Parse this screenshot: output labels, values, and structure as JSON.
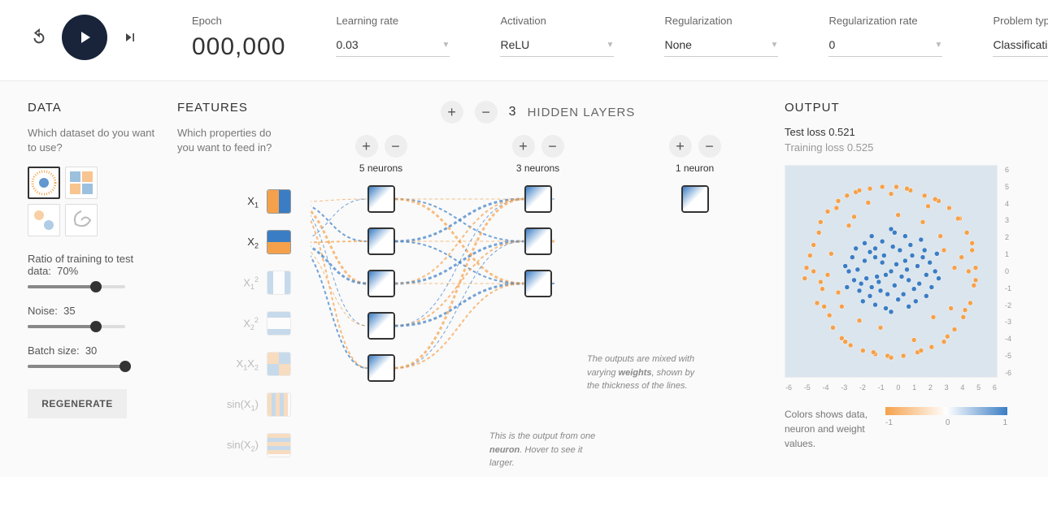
{
  "colors": {
    "orange": "#f5a14b",
    "blue": "#3b7dc4",
    "light_blue": "#9cc1df",
    "pale_orange": "#f8c48f",
    "dark": "#19243a",
    "grey": "#888888",
    "output_bg": "#dbe5ed"
  },
  "controls": {
    "epoch_label": "Epoch",
    "epoch_value": "000,000",
    "learning_rate_label": "Learning rate",
    "learning_rate_value": "0.03",
    "activation_label": "Activation",
    "activation_value": "ReLU",
    "regularization_label": "Regularization",
    "regularization_value": "None",
    "regularization_rate_label": "Regularization rate",
    "regularization_rate_value": "0",
    "problem_type_label": "Problem type",
    "problem_type_value": "Classification"
  },
  "data_panel": {
    "title": "DATA",
    "help": "Which dataset do you want to use?",
    "datasets": [
      "circle",
      "exclusive-or",
      "gaussian",
      "spiral"
    ],
    "selected_dataset": "circle",
    "ratio_label": "Ratio of training to test data:",
    "ratio_value": "70%",
    "ratio_pct": 70,
    "noise_label": "Noise:",
    "noise_value": "35",
    "noise_pct": 70,
    "batch_label": "Batch size:",
    "batch_value": "30",
    "batch_pct": 100,
    "regenerate_label": "REGENERATE"
  },
  "features_panel": {
    "title": "FEATURES",
    "help": "Which properties do you want to feed in?",
    "items": [
      {
        "label": "X<sub>1</sub>",
        "active": true,
        "type": "x1"
      },
      {
        "label": "X<sub>2</sub>",
        "active": true,
        "type": "x2"
      },
      {
        "label": "X<sub>1</sub><sup>2</sup>",
        "active": false,
        "type": "x1sq"
      },
      {
        "label": "X<sub>2</sub><sup>2</sup>",
        "active": false,
        "type": "x2sq"
      },
      {
        "label": "X<sub>1</sub>X<sub>2</sub>",
        "active": false,
        "type": "x1x2"
      },
      {
        "label": "sin(X<sub>1</sub>)",
        "active": false,
        "type": "sinx1"
      },
      {
        "label": "sin(X<sub>2</sub>)",
        "active": false,
        "type": "sinx2"
      }
    ]
  },
  "network": {
    "hidden_count": "3",
    "hidden_label": "HIDDEN LAYERS",
    "layers": [
      {
        "neurons": 5,
        "label": "5 neurons"
      },
      {
        "neurons": 3,
        "label": "3 neurons"
      },
      {
        "neurons": 1,
        "label": "1 neuron"
      }
    ],
    "callout_weights": "The outputs are mixed with varying <b>weights</b>, shown by the thickness of the lines.",
    "callout_neuron": "This is the output from one <b>neuron</b>. Hover to see it larger."
  },
  "output": {
    "title": "OUTPUT",
    "test_loss_label": "Test loss",
    "test_loss_value": "0.521",
    "training_loss_label": "Training loss",
    "training_loss_value": "0.525",
    "axis_min": -6,
    "axis_max": 6,
    "y_ticks": [
      "6",
      "5",
      "4",
      "3",
      "2",
      "1",
      "0",
      "-1",
      "-2",
      "-3",
      "-4",
      "-5",
      "-6"
    ],
    "x_ticks": [
      "-6",
      "-5",
      "-4",
      "-3",
      "-2",
      "-1",
      "0",
      "1",
      "2",
      "3",
      "4",
      "5",
      "6"
    ],
    "legend_text": "Colors shows data, neuron and weight values.",
    "colormap_ticks": [
      "-1",
      "0",
      "1"
    ],
    "points_orange": [
      [
        -4.8,
        0.2
      ],
      [
        -4.4,
        1.5
      ],
      [
        -4.2,
        -1.8
      ],
      [
        -4.0,
        2.8
      ],
      [
        -3.9,
        -1.0
      ],
      [
        -3.6,
        3.4
      ],
      [
        -3.5,
        -2.5
      ],
      [
        -3.3,
        -3.2
      ],
      [
        -3.0,
        4.0
      ],
      [
        -2.8,
        -3.8
      ],
      [
        -2.5,
        4.3
      ],
      [
        -2.3,
        -4.2
      ],
      [
        -2.0,
        4.5
      ],
      [
        -1.6,
        -4.5
      ],
      [
        -1.2,
        4.7
      ],
      [
        -0.9,
        -4.7
      ],
      [
        -0.5,
        4.8
      ],
      [
        -0.2,
        -4.8
      ],
      [
        0.3,
        4.8
      ],
      [
        0.7,
        -4.8
      ],
      [
        1.1,
        4.6
      ],
      [
        1.5,
        -4.6
      ],
      [
        1.9,
        4.3
      ],
      [
        2.3,
        -4.3
      ],
      [
        2.7,
        4.0
      ],
      [
        3.0,
        -4.0
      ],
      [
        3.3,
        3.6
      ],
      [
        3.6,
        -3.3
      ],
      [
        3.9,
        3.0
      ],
      [
        4.1,
        -2.6
      ],
      [
        4.3,
        2.2
      ],
      [
        4.5,
        -1.8
      ],
      [
        4.6,
        1.2
      ],
      [
        4.7,
        -0.8
      ],
      [
        4.8,
        0.2
      ],
      [
        -4.9,
        -0.4
      ],
      [
        -4.6,
        0.9
      ],
      [
        -4.1,
        2.2
      ],
      [
        -3.8,
        -2.0
      ],
      [
        -3.1,
        3.6
      ],
      [
        -2.6,
        -4.0
      ],
      [
        -1.8,
        4.6
      ],
      [
        -1.0,
        -4.6
      ],
      [
        0.0,
        -4.9
      ],
      [
        0.9,
        4.7
      ],
      [
        1.7,
        -4.5
      ],
      [
        2.5,
        4.1
      ],
      [
        3.2,
        -3.7
      ],
      [
        3.8,
        3.0
      ],
      [
        4.2,
        -2.2
      ],
      [
        4.6,
        1.6
      ],
      [
        4.8,
        -0.5
      ],
      [
        -2.1,
        3.1
      ],
      [
        3.4,
        -2.1
      ],
      [
        -3.4,
        1.0
      ],
      [
        2.1,
        3.7
      ],
      [
        -1.3,
        3.9
      ],
      [
        1.3,
        -3.9
      ],
      [
        4.0,
        0.8
      ],
      [
        -4.0,
        -0.6
      ],
      [
        0.4,
        3.2
      ],
      [
        -0.6,
        -3.2
      ],
      [
        2.8,
        2.0
      ],
      [
        -2.8,
        -2.0
      ],
      [
        3.6,
        0.2
      ],
      [
        -3.6,
        -0.2
      ],
      [
        1.8,
        2.8
      ],
      [
        -1.8,
        -2.8
      ],
      [
        3.0,
        1.2
      ],
      [
        -3.0,
        -1.2
      ],
      [
        2.4,
        -2.6
      ],
      [
        -2.4,
        2.6
      ],
      [
        4.4,
        0.0
      ],
      [
        -4.4,
        0.0
      ],
      [
        0.0,
        4.4
      ]
    ],
    "points_blue": [
      [
        0.0,
        0.0
      ],
      [
        0.3,
        0.4
      ],
      [
        -0.3,
        -0.2
      ],
      [
        0.6,
        -0.3
      ],
      [
        -0.5,
        0.5
      ],
      [
        0.8,
        0.6
      ],
      [
        -0.7,
        -0.6
      ],
      [
        1.0,
        -0.5
      ],
      [
        -0.9,
        0.8
      ],
      [
        1.2,
        0.9
      ],
      [
        -1.1,
        -0.9
      ],
      [
        1.3,
        -1.0
      ],
      [
        -1.2,
        1.1
      ],
      [
        0.2,
        -0.8
      ],
      [
        -0.4,
        0.9
      ],
      [
        0.9,
        0.1
      ],
      [
        -0.8,
        -0.3
      ],
      [
        0.5,
        1.2
      ],
      [
        -0.6,
        -1.1
      ],
      [
        1.5,
        0.3
      ],
      [
        -1.4,
        -0.4
      ],
      [
        0.1,
        1.4
      ],
      [
        -0.2,
        -1.3
      ],
      [
        1.6,
        -0.7
      ],
      [
        -1.5,
        0.6
      ],
      [
        0.7,
        -1.3
      ],
      [
        -0.9,
        1.3
      ],
      [
        1.8,
        0.8
      ],
      [
        -1.7,
        -0.7
      ],
      [
        2.0,
        -0.2
      ],
      [
        -1.9,
        0.1
      ],
      [
        0.4,
        -1.6
      ],
      [
        -0.5,
        1.7
      ],
      [
        1.1,
        1.5
      ],
      [
        -1.2,
        -1.4
      ],
      [
        1.9,
        1.2
      ],
      [
        -1.8,
        -1.1
      ],
      [
        2.2,
        0.5
      ],
      [
        -2.1,
        -0.5
      ],
      [
        0.8,
        2.0
      ],
      [
        -0.9,
        -1.9
      ],
      [
        2.3,
        -0.9
      ],
      [
        -2.2,
        0.8
      ],
      [
        1.4,
        -1.7
      ],
      [
        -1.5,
        1.6
      ],
      [
        0.2,
        2.2
      ],
      [
        -0.3,
        -2.1
      ],
      [
        2.5,
        0.0
      ],
      [
        -2.4,
        0.0
      ],
      [
        0.0,
        2.4
      ],
      [
        0.0,
        -2.3
      ],
      [
        1.7,
        1.8
      ],
      [
        -1.6,
        -1.7
      ],
      [
        2.0,
        -1.4
      ],
      [
        -2.0,
        1.3
      ],
      [
        1.0,
        -2.0
      ],
      [
        -1.1,
        2.0
      ],
      [
        2.6,
        1.0
      ],
      [
        -2.5,
        -0.9
      ],
      [
        2.7,
        -0.4
      ],
      [
        -2.6,
        0.3
      ]
    ]
  }
}
